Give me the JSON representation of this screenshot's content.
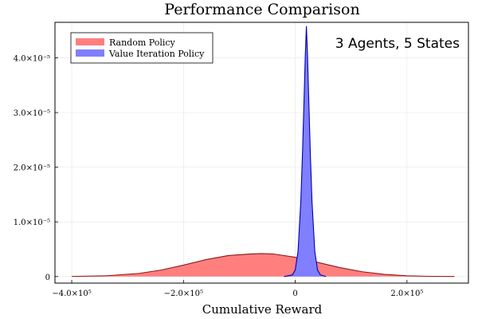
{
  "chart_data": {
    "type": "area",
    "title": "Performance Comparison",
    "xlabel": "Cumulative Reward",
    "ylabel": "",
    "annotation": "3 Agents, 5 States",
    "xlim": [
      -430000,
      310000
    ],
    "ylim": [
      -1.2e-06,
      4.65e-05
    ],
    "grid": true,
    "legend_position": "top-left",
    "x_ticks": [
      {
        "value": -400000,
        "label": "−4.0×10⁵"
      },
      {
        "value": -200000,
        "label": "−2.0×10⁵"
      },
      {
        "value": 0,
        "label": "0"
      },
      {
        "value": 200000,
        "label": "2.0×10⁵"
      }
    ],
    "y_ticks": [
      {
        "value": 0,
        "label": "0"
      },
      {
        "value": 1e-05,
        "label": "1.0×10⁻⁵"
      },
      {
        "value": 2e-05,
        "label": "2.0×10⁻⁵"
      },
      {
        "value": 3e-05,
        "label": "3.0×10⁻⁵"
      },
      {
        "value": 4e-05,
        "label": "4.0×10⁻⁵"
      }
    ],
    "series": [
      {
        "name": "Random Policy",
        "fill_color": "#ff7f7f",
        "line_color": "#8b1a1a",
        "x": [
          -400000,
          -340000,
          -280000,
          -240000,
          -200000,
          -160000,
          -120000,
          -80000,
          -60000,
          -40000,
          0,
          40000,
          80000,
          120000,
          160000,
          200000,
          240000,
          285000
        ],
        "y": [
          2e-08,
          1.3e-07,
          5.7e-07,
          1.19e-06,
          2.09e-06,
          3.09e-06,
          3.84e-06,
          4.14e-06,
          4.2e-06,
          4.14e-06,
          3.53e-06,
          2.6e-06,
          1.64e-06,
          8.8e-07,
          3.9e-07,
          1.4e-07,
          4e-08,
          1e-08
        ]
      },
      {
        "name": "Value Iteration Policy",
        "fill_color": "#7f7fff",
        "line_color": "#0000b0",
        "x": [
          -20000,
          -5000,
          0,
          5000,
          10000,
          13000,
          16000,
          18000,
          20000,
          22000,
          24000,
          27000,
          30000,
          35000,
          40000,
          45000,
          55000
        ],
        "y": [
          0,
          3e-07,
          1.2e-06,
          4.6e-06,
          1.38e-05,
          2.26e-05,
          3.32e-05,
          4.05e-05,
          4.58e-05,
          4.05e-05,
          3.32e-05,
          2.26e-05,
          1.38e-05,
          4.6e-06,
          1.2e-06,
          3e-07,
          0
        ]
      }
    ]
  }
}
